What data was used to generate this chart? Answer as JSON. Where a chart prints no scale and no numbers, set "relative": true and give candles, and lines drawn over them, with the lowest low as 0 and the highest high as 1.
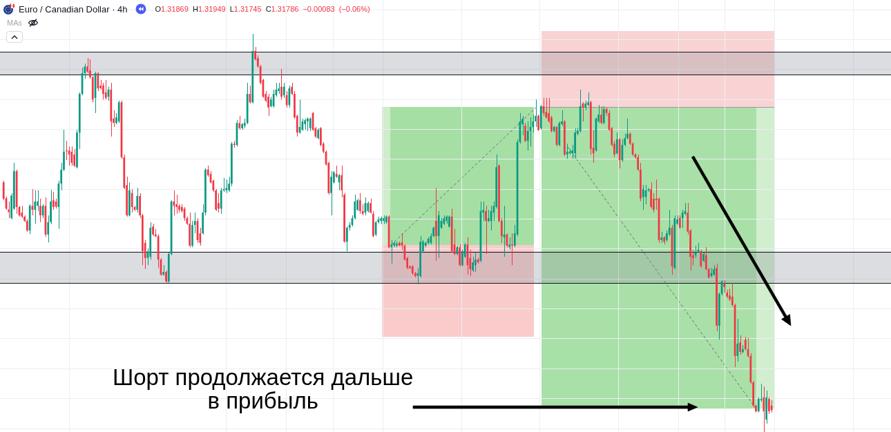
{
  "chart_data": {
    "type": "candlestick",
    "title": "Euro / Canadian Dollar · 4h",
    "subtitle": "O1.31869 H1.31949 L1.31745 C1.31786 −0.00083 (−0.06%)",
    "annotations": [
      "MAs",
      "Шорт продолжается дальше\nв прибыль"
    ],
    "relative": true,
    "grid": true,
    "bands": [
      {
        "axis": "y",
        "from": 0.896,
        "to": 0.955,
        "color": "#9598a1"
      },
      {
        "axis": "y",
        "from": 0.373,
        "to": 0.453,
        "color": "#9598a1"
      }
    ],
    "categories": [
      null,
      null,
      null,
      null,
      null,
      null,
      null,
      null,
      null,
      null,
      null,
      null,
      null,
      null,
      null,
      null,
      null,
      null,
      null,
      null,
      null,
      null,
      null,
      null,
      null,
      null,
      null,
      null,
      null,
      null,
      null,
      null,
      null,
      null,
      null,
      null,
      null,
      null,
      null,
      null,
      null,
      null,
      null,
      null,
      null,
      null,
      null,
      null,
      null,
      null,
      null,
      null,
      null,
      null,
      null,
      null,
      null,
      null,
      null,
      null,
      null,
      null,
      null,
      null,
      null,
      null,
      null,
      null,
      null,
      null,
      null,
      null,
      null,
      null,
      null,
      null,
      null,
      null,
      null,
      null,
      null,
      null,
      null,
      null,
      null,
      null,
      null,
      null,
      null,
      null,
      null,
      null,
      null,
      null,
      null,
      null,
      null,
      null,
      null,
      null,
      null,
      null,
      null,
      null,
      null,
      null,
      null,
      null,
      null,
      null,
      null,
      null,
      null,
      null,
      null,
      null,
      null,
      null,
      null,
      null,
      null,
      null,
      null,
      null,
      null,
      null,
      null,
      null,
      null,
      null,
      null,
      null,
      null,
      null,
      null,
      null,
      null,
      null,
      null,
      null,
      null,
      null,
      null,
      null,
      null,
      null,
      null,
      null,
      null,
      null,
      null,
      null,
      null,
      null,
      null,
      null,
      null,
      null,
      null,
      null,
      null,
      null,
      null,
      null,
      null,
      null,
      null,
      null,
      null,
      null,
      null,
      null,
      null,
      null,
      null,
      null,
      null,
      null,
      null,
      null,
      null,
      null,
      null,
      null,
      null,
      null,
      null,
      null,
      null,
      null,
      null,
      null,
      null,
      null,
      null,
      null,
      null,
      null,
      null,
      null,
      null,
      null,
      null,
      null,
      null,
      null,
      null,
      null,
      null,
      null,
      null,
      null,
      null,
      null,
      null,
      null,
      null,
      null,
      null,
      null,
      null,
      null,
      null,
      null,
      null,
      null,
      null,
      null,
      null,
      null,
      null,
      null,
      null,
      null,
      null,
      null,
      null,
      null,
      null,
      null,
      null,
      null,
      null,
      null,
      null,
      null,
      null,
      null,
      null,
      null,
      null,
      null,
      null,
      null,
      null,
      null,
      null,
      null,
      null,
      null,
      null,
      null,
      null,
      null,
      null,
      null,
      null,
      null,
      null,
      null,
      null,
      null,
      null,
      null,
      null,
      null,
      null,
      null,
      null,
      null,
      null,
      null,
      null,
      null,
      null,
      null,
      null,
      null,
      null,
      null,
      null,
      null,
      null,
      null
    ],
    "ohlc": [
      [
        0.627,
        0.631,
        0.582,
        0.586
      ],
      [
        0.587,
        0.591,
        0.558,
        0.561
      ],
      [
        0.559,
        0.579,
        0.537,
        0.552
      ],
      [
        0.537,
        0.6,
        0.534,
        0.594
      ],
      [
        0.561,
        0.676,
        0.558,
        0.655
      ],
      [
        0.655,
        0.659,
        0.548,
        0.565
      ],
      [
        0.565,
        0.568,
        0.541,
        0.544
      ],
      [
        0.551,
        0.568,
        0.537,
        0.541
      ],
      [
        0.541,
        0.544,
        0.527,
        0.53
      ],
      [
        0.53,
        0.534,
        0.503,
        0.506
      ],
      [
        0.506,
        0.572,
        0.497,
        0.568
      ],
      [
        0.568,
        0.61,
        0.544,
        0.558
      ],
      [
        0.558,
        0.607,
        0.523,
        0.579
      ],
      [
        0.568,
        0.607,
        0.555,
        0.579
      ],
      [
        0.568,
        0.586,
        0.527,
        0.544
      ],
      [
        0.544,
        0.572,
        0.537,
        0.568
      ],
      [
        0.568,
        0.589,
        0.49,
        0.496
      ],
      [
        0.496,
        0.544,
        0.476,
        0.527
      ],
      [
        0.527,
        0.608,
        0.522,
        0.579
      ],
      [
        0.582,
        0.603,
        0.558,
        0.565
      ],
      [
        0.579,
        0.586,
        0.561,
        0.566
      ],
      [
        0.565,
        0.631,
        0.51,
        0.624
      ],
      [
        0.624,
        0.676,
        0.607,
        0.659
      ],
      [
        0.659,
        0.759,
        0.655,
        0.704
      ],
      [
        0.707,
        0.731,
        0.683,
        0.705
      ],
      [
        0.707,
        0.717,
        0.669,
        0.697
      ],
      [
        0.704,
        0.717,
        0.669,
        0.676
      ],
      [
        0.697,
        0.711,
        0.665,
        0.669
      ],
      [
        0.665,
        0.759,
        0.662,
        0.752
      ],
      [
        0.752,
        0.853,
        0.711,
        0.849
      ],
      [
        0.849,
        0.915,
        0.846,
        0.901
      ],
      [
        0.901,
        0.925,
        0.887,
        0.918
      ],
      [
        0.918,
        0.939,
        0.901,
        0.905
      ],
      [
        0.908,
        0.936,
        0.887,
        0.891
      ],
      [
        0.891,
        0.894,
        0.828,
        0.835
      ],
      [
        0.839,
        0.905,
        0.801,
        0.901
      ],
      [
        0.901,
        0.904,
        0.856,
        0.863
      ],
      [
        0.87,
        0.884,
        0.86,
        0.863
      ],
      [
        0.87,
        0.877,
        0.835,
        0.849
      ],
      [
        0.853,
        0.884,
        0.835,
        0.839
      ],
      [
        0.842,
        0.867,
        0.832,
        0.86
      ],
      [
        0.86,
        0.877,
        0.742,
        0.78
      ],
      [
        0.787,
        0.808,
        0.766,
        0.776
      ],
      [
        0.776,
        0.801,
        0.773,
        0.79
      ],
      [
        0.78,
        0.832,
        0.776,
        0.828
      ],
      [
        0.828,
        0.832,
        0.686,
        0.69
      ],
      [
        0.69,
        0.697,
        0.61,
        0.613
      ],
      [
        0.62,
        0.641,
        0.541,
        0.544
      ],
      [
        0.544,
        0.627,
        0.541,
        0.607
      ],
      [
        0.6,
        0.61,
        0.551,
        0.565
      ],
      [
        0.565,
        0.568,
        0.555,
        0.558
      ],
      [
        0.558,
        0.613,
        0.551,
        0.593
      ],
      [
        0.593,
        0.6,
        0.537,
        0.544
      ],
      [
        0.544,
        0.548,
        0.419,
        0.454
      ],
      [
        0.475,
        0.482,
        0.409,
        0.437
      ],
      [
        0.437,
        0.461,
        0.419,
        0.454
      ],
      [
        0.44,
        0.527,
        0.433,
        0.513
      ],
      [
        0.516,
        0.523,
        0.492,
        0.496
      ],
      [
        0.496,
        0.51,
        0.489,
        0.492
      ],
      [
        0.492,
        0.496,
        0.412,
        0.433
      ],
      [
        0.433,
        0.437,
        0.392,
        0.395
      ],
      [
        0.395,
        0.419,
        0.392,
        0.402
      ],
      [
        0.402,
        0.406,
        0.374,
        0.378
      ],
      [
        0.378,
        0.451,
        0.374,
        0.447
      ],
      [
        0.447,
        0.582,
        0.444,
        0.579
      ],
      [
        0.579,
        0.607,
        0.544,
        0.568
      ],
      [
        0.572,
        0.596,
        0.548,
        0.565
      ],
      [
        0.568,
        0.572,
        0.551,
        0.558
      ],
      [
        0.565,
        0.572,
        0.551,
        0.555
      ],
      [
        0.561,
        0.565,
        0.53,
        0.537
      ],
      [
        0.537,
        0.541,
        0.52,
        0.523
      ],
      [
        0.523,
        0.551,
        0.464,
        0.468
      ],
      [
        0.468,
        0.53,
        0.464,
        0.52
      ],
      [
        0.52,
        0.551,
        0.499,
        0.53
      ],
      [
        0.53,
        0.537,
        0.475,
        0.482
      ],
      [
        0.499,
        0.513,
        0.468,
        0.475
      ],
      [
        0.499,
        0.572,
        0.496,
        0.551
      ],
      [
        0.551,
        0.662,
        0.544,
        0.659
      ],
      [
        0.659,
        0.669,
        0.641,
        0.645
      ],
      [
        0.648,
        0.655,
        0.624,
        0.627
      ],
      [
        0.631,
        0.634,
        0.603,
        0.607
      ],
      [
        0.607,
        0.61,
        0.555,
        0.558
      ],
      [
        0.575,
        0.6,
        0.551,
        0.561
      ],
      [
        0.561,
        0.613,
        0.548,
        0.607
      ],
      [
        0.607,
        0.638,
        0.603,
        0.61
      ],
      [
        0.607,
        0.634,
        0.6,
        0.613
      ],
      [
        0.607,
        0.641,
        0.603,
        0.624
      ],
      [
        0.624,
        0.728,
        0.617,
        0.724
      ],
      [
        0.724,
        0.731,
        0.714,
        0.721
      ],
      [
        0.721,
        0.783,
        0.717,
        0.776
      ],
      [
        0.776,
        0.794,
        0.759,
        0.763
      ],
      [
        0.763,
        0.776,
        0.759,
        0.773
      ],
      [
        0.769,
        0.787,
        0.763,
        0.776
      ],
      [
        0.776,
        0.877,
        0.773,
        0.849
      ],
      [
        0.849,
        0.87,
        0.825,
        0.828
      ],
      [
        0.828,
        1.0,
        0.825,
        0.957
      ],
      [
        0.957,
        0.967,
        0.932,
        0.936
      ],
      [
        0.939,
        0.946,
        0.915,
        0.918
      ],
      [
        0.918,
        0.922,
        0.873,
        0.877
      ],
      [
        0.884,
        0.887,
        0.839,
        0.842
      ],
      [
        0.849,
        0.856,
        0.828,
        0.832
      ],
      [
        0.842,
        0.849,
        0.794,
        0.815
      ],
      [
        0.818,
        0.842,
        0.815,
        0.835
      ],
      [
        0.818,
        0.86,
        0.815,
        0.849
      ],
      [
        0.846,
        0.877,
        0.842,
        0.86
      ],
      [
        0.856,
        0.877,
        0.849,
        0.863
      ],
      [
        0.867,
        0.912,
        0.835,
        0.842
      ],
      [
        0.846,
        0.877,
        0.839,
        0.867
      ],
      [
        0.846,
        0.856,
        0.815,
        0.821
      ],
      [
        0.821,
        0.87,
        0.815,
        0.863
      ],
      [
        0.867,
        0.877,
        0.846,
        0.849
      ],
      [
        0.849,
        0.856,
        0.787,
        0.79
      ],
      [
        0.794,
        0.797,
        0.742,
        0.752
      ],
      [
        0.752,
        0.835,
        0.749,
        0.766
      ],
      [
        0.759,
        0.787,
        0.756,
        0.78
      ],
      [
        0.773,
        0.787,
        0.759,
        0.783
      ],
      [
        0.78,
        0.79,
        0.756,
        0.787
      ],
      [
        0.763,
        0.79,
        0.756,
        0.787
      ],
      [
        0.801,
        0.804,
        0.756,
        0.759
      ],
      [
        0.763,
        0.766,
        0.738,
        0.742
      ],
      [
        0.738,
        0.763,
        0.735,
        0.759
      ],
      [
        0.763,
        0.766,
        0.717,
        0.721
      ],
      [
        0.724,
        0.728,
        0.7,
        0.704
      ],
      [
        0.704,
        0.707,
        0.669,
        0.672
      ],
      [
        0.676,
        0.679,
        0.596,
        0.6
      ],
      [
        0.6,
        0.655,
        0.544,
        0.641
      ],
      [
        0.627,
        0.655,
        0.624,
        0.652
      ],
      [
        0.648,
        0.669,
        0.638,
        0.641
      ],
      [
        0.627,
        0.648,
        0.607,
        0.645
      ],
      [
        0.645,
        0.669,
        0.589,
        0.607
      ],
      [
        0.596,
        0.6,
        0.475,
        0.478
      ],
      [
        0.478,
        0.516,
        0.454,
        0.513
      ],
      [
        0.513,
        0.527,
        0.506,
        0.52
      ],
      [
        0.52,
        0.544,
        0.516,
        0.537
      ],
      [
        0.537,
        0.596,
        0.534,
        0.579
      ],
      [
        0.558,
        0.586,
        0.555,
        0.582
      ],
      [
        0.582,
        0.6,
        0.548,
        0.555
      ],
      [
        0.555,
        0.572,
        0.544,
        0.548
      ],
      [
        0.551,
        0.589,
        0.544,
        0.575
      ],
      [
        0.555,
        0.579,
        0.551,
        0.575
      ],
      [
        0.575,
        0.586,
        0.548,
        0.551
      ],
      [
        0.548,
        0.555,
        0.489,
        0.492
      ],
      [
        0.496,
        0.53,
        0.492,
        0.527
      ],
      [
        0.527,
        0.541,
        0.523,
        0.534
      ],
      [
        0.53,
        0.541,
        0.522,
        0.537
      ],
      [
        0.53,
        0.544,
        0.522,
        0.537
      ],
      [
        0.527,
        0.544,
        0.523,
        0.541
      ],
      [
        0.541,
        0.544,
        0.461,
        0.464
      ],
      [
        0.464,
        0.482,
        0.423,
        0.471
      ],
      [
        0.468,
        0.478,
        0.464,
        0.475
      ],
      [
        0.468,
        0.478,
        0.464,
        0.473
      ],
      [
        0.475,
        0.478,
        0.467,
        0.468
      ],
      [
        0.476,
        0.499,
        0.457,
        0.468
      ],
      [
        0.468,
        0.471,
        0.43,
        0.433
      ],
      [
        0.437,
        0.44,
        0.409,
        0.412
      ],
      [
        0.416,
        0.419,
        0.409,
        0.412
      ],
      [
        0.416,
        0.419,
        0.395,
        0.399
      ],
      [
        0.399,
        0.402,
        0.388,
        0.392
      ],
      [
        0.392,
        0.412,
        0.371,
        0.399
      ],
      [
        0.392,
        0.492,
        0.388,
        0.478
      ],
      [
        0.454,
        0.482,
        0.451,
        0.478
      ],
      [
        0.468,
        0.478,
        0.464,
        0.475
      ],
      [
        0.475,
        0.489,
        0.471,
        0.485
      ],
      [
        0.475,
        0.499,
        0.471,
        0.492
      ],
      [
        0.492,
        0.516,
        0.489,
        0.513
      ],
      [
        0.53,
        0.613,
        0.43,
        0.492
      ],
      [
        0.492,
        0.555,
        0.437,
        0.544
      ],
      [
        0.513,
        0.537,
        0.51,
        0.53
      ],
      [
        0.523,
        0.544,
        0.52,
        0.537
      ],
      [
        0.53,
        0.544,
        0.523,
        0.541
      ],
      [
        0.516,
        0.544,
        0.513,
        0.541
      ],
      [
        0.541,
        0.561,
        0.451,
        0.454
      ],
      [
        0.471,
        0.51,
        0.444,
        0.447
      ],
      [
        0.447,
        0.468,
        0.444,
        0.464
      ],
      [
        0.464,
        0.471,
        0.416,
        0.419
      ],
      [
        0.419,
        0.458,
        0.416,
        0.454
      ],
      [
        0.44,
        0.475,
        0.437,
        0.471
      ],
      [
        0.471,
        0.489,
        0.395,
        0.419
      ],
      [
        0.437,
        0.458,
        0.392,
        0.409
      ],
      [
        0.406,
        0.44,
        0.402,
        0.426
      ],
      [
        0.419,
        0.451,
        0.402,
        0.433
      ],
      [
        0.433,
        0.437,
        0.423,
        0.426
      ],
      [
        0.43,
        0.579,
        0.426,
        0.555
      ],
      [
        0.551,
        0.579,
        0.53,
        0.558
      ],
      [
        0.555,
        0.568,
        0.447,
        0.53
      ],
      [
        0.53,
        0.558,
        0.527,
        0.537
      ],
      [
        0.53,
        0.568,
        0.506,
        0.555
      ],
      [
        0.551,
        0.579,
        0.53,
        0.568
      ],
      [
        0.565,
        0.697,
        0.561,
        0.665
      ],
      [
        0.669,
        0.672,
        0.527,
        0.53
      ],
      [
        0.53,
        0.537,
        0.475,
        0.492
      ],
      [
        0.489,
        0.568,
        0.44,
        0.496
      ],
      [
        0.496,
        0.499,
        0.464,
        0.468
      ],
      [
        0.464,
        0.489,
        0.458,
        0.471
      ],
      [
        0.471,
        0.499,
        0.419,
        0.468
      ],
      [
        0.468,
        0.52,
        0.464,
        0.499
      ],
      [
        0.496,
        0.735,
        0.492,
        0.728
      ],
      [
        0.728,
        0.801,
        0.724,
        0.78
      ],
      [
        0.773,
        0.794,
        0.745,
        0.787
      ],
      [
        0.769,
        0.776,
        0.728,
        0.731
      ],
      [
        0.731,
        0.78,
        0.707,
        0.756
      ],
      [
        0.756,
        0.79,
        0.717,
        0.766
      ],
      [
        0.766,
        0.797,
        0.752,
        0.78
      ],
      [
        0.78,
        0.835,
        0.766,
        0.794
      ],
      [
        0.794,
        0.797,
        0.756,
        0.759
      ],
      [
        0.763,
        0.821,
        0.759,
        0.818
      ],
      [
        0.818,
        0.839,
        0.794,
        0.801
      ],
      [
        0.804,
        0.839,
        0.787,
        0.79
      ],
      [
        0.801,
        0.839,
        0.776,
        0.78
      ],
      [
        0.79,
        0.794,
        0.752,
        0.756
      ],
      [
        0.756,
        0.769,
        0.752,
        0.766
      ],
      [
        0.766,
        0.769,
        0.717,
        0.721
      ],
      [
        0.721,
        0.78,
        0.717,
        0.776
      ],
      [
        0.773,
        0.808,
        0.769,
        0.78
      ],
      [
        0.78,
        0.783,
        0.693,
        0.697
      ],
      [
        0.697,
        0.724,
        0.686,
        0.704
      ],
      [
        0.7,
        0.711,
        0.697,
        0.704
      ],
      [
        0.7,
        0.721,
        0.686,
        0.707
      ],
      [
        0.7,
        0.763,
        0.686,
        0.752
      ],
      [
        0.749,
        0.763,
        0.745,
        0.756
      ],
      [
        0.756,
        0.86,
        0.752,
        0.818
      ],
      [
        0.825,
        0.828,
        0.78,
        0.815
      ],
      [
        0.815,
        0.832,
        0.808,
        0.825
      ],
      [
        0.821,
        0.853,
        0.818,
        0.828
      ],
      [
        0.828,
        0.832,
        0.697,
        0.711
      ],
      [
        0.714,
        0.759,
        0.676,
        0.7
      ],
      [
        0.707,
        0.79,
        0.704,
        0.787
      ],
      [
        0.78,
        0.821,
        0.776,
        0.797
      ],
      [
        0.797,
        0.818,
        0.773,
        0.776
      ],
      [
        0.776,
        0.818,
        0.773,
        0.811
      ],
      [
        0.811,
        0.815,
        0.794,
        0.801
      ],
      [
        0.801,
        0.808,
        0.756,
        0.759
      ],
      [
        0.763,
        0.766,
        0.717,
        0.721
      ],
      [
        0.724,
        0.731,
        0.69,
        0.697
      ],
      [
        0.7,
        0.752,
        0.697,
        0.735
      ],
      [
        0.735,
        0.738,
        0.662,
        0.683
      ],
      [
        0.683,
        0.735,
        0.679,
        0.721
      ],
      [
        0.721,
        0.749,
        0.717,
        0.738
      ],
      [
        0.738,
        0.787,
        0.735,
        0.749
      ],
      [
        0.749,
        0.752,
        0.721,
        0.724
      ],
      [
        0.724,
        0.728,
        0.693,
        0.697
      ],
      [
        0.697,
        0.7,
        0.686,
        0.69
      ],
      [
        0.69,
        0.697,
        0.655,
        0.659
      ],
      [
        0.659,
        0.676,
        0.579,
        0.586
      ],
      [
        0.59,
        0.62,
        0.558,
        0.61
      ],
      [
        0.59,
        0.62,
        0.572,
        0.607
      ],
      [
        0.607,
        0.613,
        0.603,
        0.61
      ],
      [
        0.61,
        0.627,
        0.561,
        0.565
      ],
      [
        0.586,
        0.6,
        0.551,
        0.558
      ],
      [
        0.586,
        0.634,
        0.558,
        0.582
      ],
      [
        0.586,
        0.589,
        0.475,
        0.482
      ],
      [
        0.482,
        0.503,
        0.475,
        0.489
      ],
      [
        0.489,
        0.492,
        0.471,
        0.478
      ],
      [
        0.482,
        0.506,
        0.478,
        0.499
      ],
      [
        0.496,
        0.558,
        0.492,
        0.513
      ],
      [
        0.513,
        0.52,
        0.395,
        0.416
      ],
      [
        0.412,
        0.544,
        0.409,
        0.537
      ],
      [
        0.523,
        0.544,
        0.52,
        0.534
      ],
      [
        0.537,
        0.544,
        0.51,
        0.513
      ],
      [
        0.537,
        0.558,
        0.513,
        0.551
      ],
      [
        0.548,
        0.575,
        0.544,
        0.555
      ],
      [
        0.551,
        0.575,
        0.496,
        0.503
      ],
      [
        0.506,
        0.51,
        0.406,
        0.44
      ],
      [
        0.444,
        0.458,
        0.419,
        0.437
      ],
      [
        0.444,
        0.468,
        0.437,
        0.451
      ],
      [
        0.454,
        0.475,
        0.451,
        0.458
      ],
      [
        0.454,
        0.458,
        0.412,
        0.416
      ],
      [
        0.43,
        0.451,
        0.426,
        0.447
      ],
      [
        0.444,
        0.464,
        0.406,
        0.409
      ],
      [
        0.409,
        0.412,
        0.385,
        0.388
      ],
      [
        0.392,
        0.412,
        0.388,
        0.399
      ],
      [
        0.395,
        0.419,
        0.392,
        0.409
      ],
      [
        0.412,
        0.423,
        0.253,
        0.267
      ],
      [
        0.267,
        0.35,
        0.232,
        0.347
      ],
      [
        0.347,
        0.381,
        0.343,
        0.378
      ],
      [
        0.374,
        0.381,
        0.35,
        0.364
      ],
      [
        0.35,
        0.357,
        0.336,
        0.34
      ],
      [
        0.343,
        0.36,
        0.329,
        0.333
      ],
      [
        0.34,
        0.374,
        0.315,
        0.319
      ],
      [
        0.319,
        0.322,
        0.163,
        0.191
      ],
      [
        0.191,
        0.284,
        0.177,
        0.222
      ],
      [
        0.225,
        0.243,
        0.194,
        0.201
      ],
      [
        0.201,
        0.218,
        0.198,
        0.208
      ],
      [
        0.232,
        0.239,
        0.205,
        0.208
      ],
      [
        0.208,
        0.236,
        0.187,
        0.191
      ],
      [
        0.191,
        0.198,
        0.121,
        0.125
      ],
      [
        0.125,
        0.128,
        0.062,
        0.066
      ],
      [
        0.066,
        0.069,
        0.049,
        0.052
      ],
      [
        0.052,
        0.087,
        0.049,
        0.083
      ],
      [
        0.08,
        0.121,
        0.076,
        0.083
      ],
      [
        0.087,
        0.114,
        0.0,
        0.052
      ],
      [
        0.031,
        0.104,
        0.021,
        0.087
      ],
      [
        0.083,
        0.087,
        0.045,
        0.052
      ],
      [
        0.066,
        0.08,
        0.049,
        0.055
      ]
    ],
    "colors": [
      "#f23645",
      "#f23645",
      "#f23645",
      "#089981",
      "#089981",
      "#f23645",
      "#f23645",
      "#f23645",
      "#f23645",
      "#f23645",
      "#089981",
      "#f23645",
      "#089981",
      "#089981",
      "#f23645",
      "#089981",
      "#f23645",
      "#089981",
      "#089981",
      "#f23645",
      "#f23645",
      "#089981",
      "#089981",
      "#089981",
      "#f23645",
      "#f23645",
      "#f23645",
      "#f23645",
      "#089981",
      "#089981",
      "#089981",
      "#089981",
      "#f23645",
      "#f23645",
      "#f23645",
      "#089981",
      "#f23645",
      "#f23645",
      "#f23645",
      "#f23645",
      "#089981",
      "#f23645",
      "#f23645",
      "#089981",
      "#089981",
      "#f23645",
      "#f23645",
      "#f23645",
      "#089981",
      "#f23645",
      "#f23645",
      "#089981",
      "#f23645",
      "#f23645",
      "#f23645",
      "#089981",
      "#089981",
      "#f23645",
      "#f23645",
      "#f23645",
      "#f23645",
      "#089981",
      "#f23645",
      "#089981",
      "#089981",
      "#f23645",
      "#f23645",
      "#f23645",
      "#f23645",
      "#f23645",
      "#f23645",
      "#f23645",
      "#089981",
      "#089981",
      "#f23645",
      "#f23645",
      "#089981",
      "#089981",
      "#f23645",
      "#f23645",
      "#f23645",
      "#f23645",
      "#f23645",
      "#089981",
      "#089981",
      "#089981",
      "#089981",
      "#089981",
      "#f23645",
      "#089981",
      "#f23645",
      "#089981",
      "#089981",
      "#089981",
      "#f23645",
      "#089981",
      "#f23645",
      "#f23645",
      "#f23645",
      "#f23645",
      "#f23645",
      "#f23645",
      "#089981",
      "#089981",
      "#089981",
      "#089981",
      "#f23645",
      "#089981",
      "#f23645",
      "#089981",
      "#f23645",
      "#f23645",
      "#f23645",
      "#089981",
      "#089981",
      "#089981",
      "#089981",
      "#089981",
      "#f23645",
      "#f23645",
      "#089981",
      "#f23645",
      "#f23645",
      "#f23645",
      "#f23645",
      "#089981",
      "#089981",
      "#f23645",
      "#089981",
      "#f23645",
      "#f23645",
      "#089981",
      "#089981",
      "#089981",
      "#089981",
      "#089981",
      "#f23645",
      "#f23645",
      "#089981",
      "#089981",
      "#f23645",
      "#f23645",
      "#089981",
      "#089981",
      "#089981",
      "#089981",
      "#089981",
      "#f23645",
      "#089981",
      "#089981",
      "#089981",
      "#f23645",
      "#f23645",
      "#f23645",
      "#f23645",
      "#f23645",
      "#f23645",
      "#f23645",
      "#089981",
      "#089981",
      "#089981",
      "#089981",
      "#089981",
      "#089981",
      "#089981",
      "#f23645",
      "#089981",
      "#089981",
      "#089981",
      "#089981",
      "#089981",
      "#f23645",
      "#f23645",
      "#089981",
      "#f23645",
      "#089981",
      "#089981",
      "#f23645",
      "#f23645",
      "#089981",
      "#089981",
      "#f23645",
      "#089981",
      "#089981",
      "#f23645",
      "#089981",
      "#089981",
      "#089981",
      "#089981",
      "#f23645",
      "#f23645",
      "#089981",
      "#f23645",
      "#089981",
      "#f23645",
      "#089981",
      "#089981",
      "#089981",
      "#089981",
      "#f23645",
      "#089981",
      "#089981",
      "#089981",
      "#089981",
      "#f23645",
      "#089981",
      "#f23645",
      "#f23645",
      "#f23645",
      "#f23645",
      "#089981",
      "#f23645",
      "#089981",
      "#089981",
      "#f23645",
      "#089981",
      "#089981",
      "#089981",
      "#089981",
      "#089981",
      "#089981",
      "#f23645",
      "#089981",
      "#089981",
      "#f23645",
      "#f23645",
      "#089981",
      "#089981",
      "#f23645",
      "#089981",
      "#f23645",
      "#f23645",
      "#f23645",
      "#f23645",
      "#089981",
      "#f23645",
      "#089981",
      "#089981",
      "#089981",
      "#f23645",
      "#f23645",
      "#f23645",
      "#f23645",
      "#f23645",
      "#089981",
      "#089981",
      "#089981",
      "#f23645",
      "#f23645",
      "#f23645",
      "#f23645",
      "#089981",
      "#f23645",
      "#089981",
      "#089981",
      "#f23645",
      "#089981",
      "#089981",
      "#f23645",
      "#089981",
      "#089981",
      "#f23645",
      "#f23645",
      "#f23645",
      "#089981",
      "#089981",
      "#f23645",
      "#089981",
      "#f23645",
      "#f23645",
      "#089981",
      "#089981",
      "#f23645",
      "#089981",
      "#089981",
      "#f23645",
      "#f23645",
      "#f23645",
      "#f23645",
      "#f23645",
      "#089981",
      "#f23645",
      "#089981",
      "#f23645",
      "#f23645",
      "#f23645",
      "#f23645",
      "#f23645",
      "#089981",
      "#089981",
      "#f23645",
      "#089981",
      "#f23645",
      "#f23645"
    ]
  }
}
